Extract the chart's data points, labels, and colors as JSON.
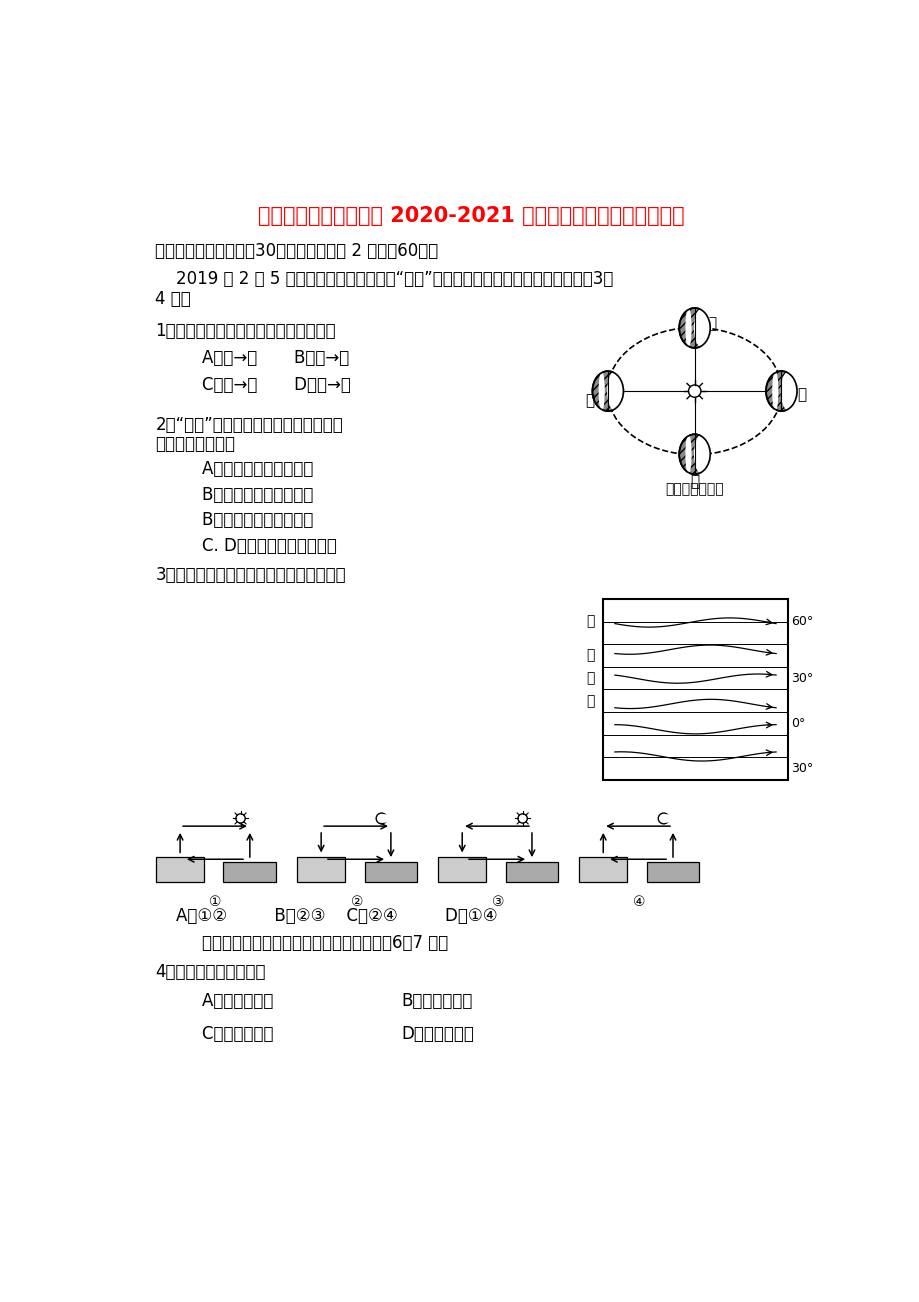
{
  "title": "宁夏青铜峡市高级中学 2020-2021 学年高二地理上学期期中试题",
  "title_color": "#FF0000",
  "bg_color": "#FFFFFF",
  "section1": "一、选择题（本大题入30个小题，每小题 2 分，入60分）",
  "intro1a": "    2019 年 2 月 5 日是中华民族的传统节日“春节”，下图为地球公转示意图，据此完成3～",
  "intro1b": "4 题。",
  "q1": "1．图中地球公转速度逐渐变慢的时段是",
  "q1_a": "    A．甲→乙       B．乙→丙",
  "q1_b": "    C．丙→丁       D．丁→甲",
  "diagram1_caption": "地球公转示意图",
  "q2": "2．“春节”这一天下列城市正午太阳高度",
  "q2_cont": "角由大到小依次是",
  "q2_a": "    A．哈尔滨、銀川、广州",
  "q2_b": "    B．哈尔滨、广州、銀川",
  "q2_c": "    B．广州、銀川、哈尔滨",
  "q2_d": "    C. D．广州、哈尔滨、銀川",
  "q3": "3．下图中能正确表示海陆间热力环流的是",
  "q3_opts": "    A．①②         B．②③    C．②④         D．①④",
  "intro2": "    右图为气压带、风带分布示意图，据此完成6～7 题。",
  "q4": "4．图中乙风带的名称是",
  "q4_a1": "    A．极地东风带",
  "q4_a2": "B．东南信风带",
  "q4_b1": "    C．东北信风带",
  "q4_b2": "D．盛行西风带",
  "diag_nums": [
    "①",
    "②",
    "③",
    "④"
  ]
}
